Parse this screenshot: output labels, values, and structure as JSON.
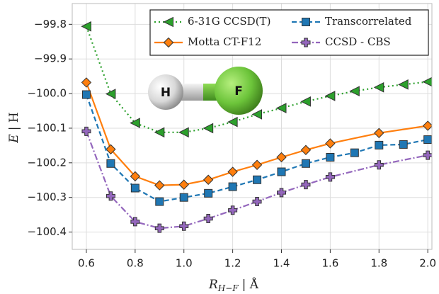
{
  "chart_data": {
    "type": "line",
    "xlabel": "R",
    "xlabel_sub": "H−F",
    "xlabel_unit": "| Å",
    "ylabel": "E",
    "ylabel_unit": "| H",
    "annotations": [
      "H",
      "F"
    ],
    "xlim": [
      0.542,
      2.017
    ],
    "ylim": [
      -100.45,
      -99.74
    ],
    "xticks": [
      {
        "value": 0.6,
        "label": "0.6"
      },
      {
        "value": 0.8,
        "label": "0.8"
      },
      {
        "value": 1.0,
        "label": "1.0"
      },
      {
        "value": 1.2,
        "label": "1.2"
      },
      {
        "value": 1.4,
        "label": "1.4"
      },
      {
        "value": 1.6,
        "label": "1.6"
      },
      {
        "value": 1.8,
        "label": "1.8"
      },
      {
        "value": 2.0,
        "label": "2.0"
      }
    ],
    "yticks": [
      {
        "value": -99.8,
        "label": "−99.8"
      },
      {
        "value": -99.9,
        "label": "−99.9"
      },
      {
        "value": -100.0,
        "label": "−100.0"
      },
      {
        "value": -100.1,
        "label": "−100.1"
      },
      {
        "value": -100.2,
        "label": "−100.2"
      },
      {
        "value": -100.3,
        "label": "−100.3"
      },
      {
        "value": -100.4,
        "label": "−100.4"
      }
    ],
    "grid": true,
    "legend": "upper right",
    "series": [
      {
        "name": "6-31G CCSD(T)",
        "color": "#2ca02c",
        "dash": "2 4",
        "marker": "triangle-left",
        "x": [
          0.6,
          0.7,
          0.8,
          0.9,
          1.0,
          1.1,
          1.2,
          1.3,
          1.4,
          1.5,
          1.6,
          1.7,
          1.8,
          1.9,
          2.0
        ],
        "values": [
          -99.806,
          -100.001,
          -100.085,
          -100.112,
          -100.112,
          -100.1,
          -100.082,
          -100.06,
          -100.042,
          -100.023,
          -100.007,
          -99.993,
          -99.982,
          -99.974,
          -99.966
        ]
      },
      {
        "name": "Motta CT-F12",
        "color": "#ff7f0e",
        "dash": "none",
        "marker": "diamond",
        "x": [
          0.6,
          0.7,
          0.8,
          0.9,
          1.0,
          1.1,
          1.2,
          1.3,
          1.4,
          1.5,
          1.6,
          1.8,
          2.0
        ],
        "values": [
          -99.968,
          -100.161,
          -100.239,
          -100.265,
          -100.263,
          -100.249,
          -100.226,
          -100.206,
          -100.184,
          -100.163,
          -100.144,
          -100.114,
          -100.093
        ]
      },
      {
        "name": "Transcorrelated",
        "color": "#1f77b4",
        "dash": "7 4",
        "marker": "square",
        "x": [
          0.6,
          0.7,
          0.8,
          0.9,
          1.0,
          1.1,
          1.2,
          1.3,
          1.4,
          1.5,
          1.6,
          1.7,
          1.8,
          1.9,
          2.0
        ],
        "values": [
          -100.003,
          -100.202,
          -100.273,
          -100.312,
          -100.3,
          -100.288,
          -100.269,
          -100.249,
          -100.226,
          -100.202,
          -100.184,
          -100.171,
          -100.149,
          -100.147,
          -100.133
        ]
      },
      {
        "name": "CCSD - CBS",
        "color": "#9467bd",
        "dash": "9 3 2 3",
        "marker": "plus",
        "x": [
          0.6,
          0.7,
          0.8,
          0.9,
          1.0,
          1.1,
          1.2,
          1.3,
          1.4,
          1.5,
          1.6,
          1.8,
          2.0
        ],
        "values": [
          -100.109,
          -100.296,
          -100.37,
          -100.389,
          -100.383,
          -100.361,
          -100.337,
          -100.312,
          -100.286,
          -100.263,
          -100.241,
          -100.206,
          -100.178
        ]
      }
    ]
  }
}
